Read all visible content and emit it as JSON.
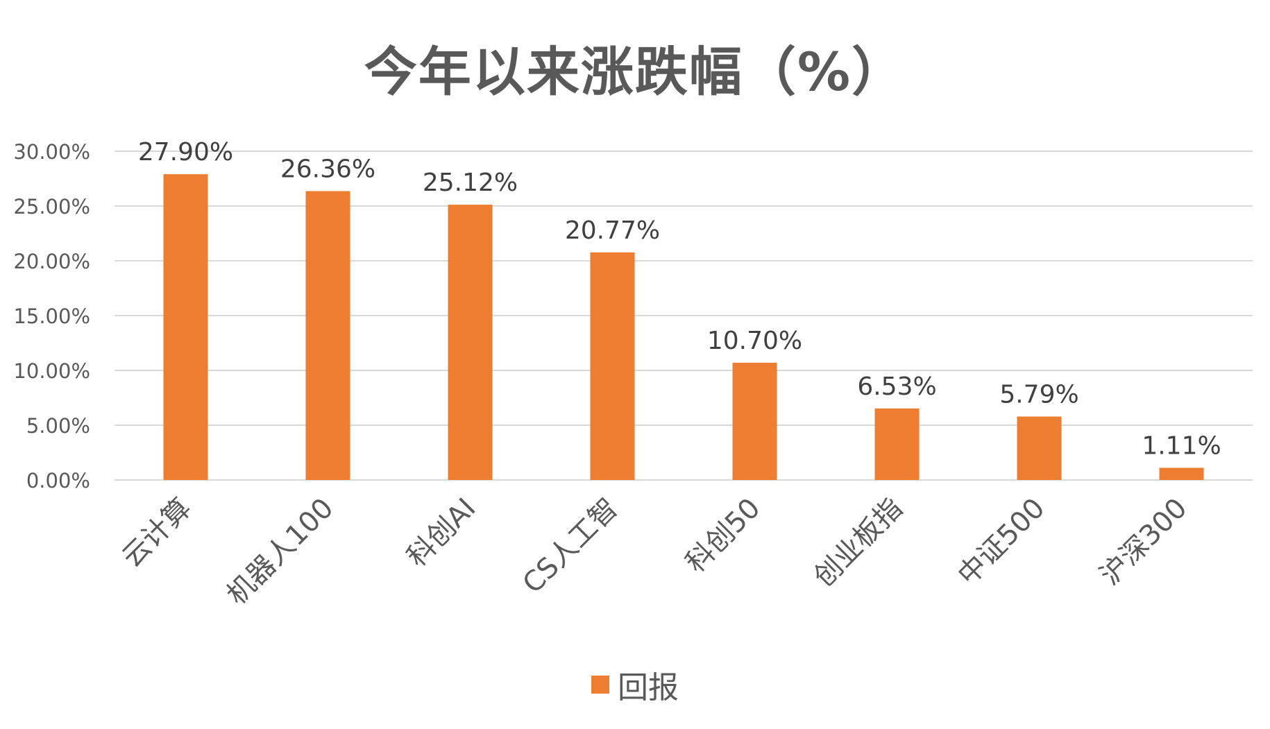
{
  "chart_data": {
    "type": "bar",
    "title": "今年以来涨跌幅（%）",
    "categories": [
      "云计算",
      "机器人100",
      "科创AI",
      "CS人工智",
      "科创50",
      "创业板指",
      "中证500",
      "沪深300"
    ],
    "series": [
      {
        "name": "回报",
        "values": [
          27.9,
          26.36,
          25.12,
          20.77,
          10.7,
          6.53,
          5.79,
          1.11
        ],
        "data_labels": [
          "27.90%",
          "26.36%",
          "25.12%",
          "20.77%",
          "10.70%",
          "6.53%",
          "5.79%",
          "1.11%"
        ],
        "color": "#ED7D31"
      }
    ],
    "ylim": [
      0,
      30
    ],
    "yticks": [
      0,
      5,
      10,
      15,
      20,
      25,
      30
    ],
    "ytick_labels": [
      "0.00%",
      "5.00%",
      "10.00%",
      "15.00%",
      "20.00%",
      "25.00%",
      "30.00%"
    ],
    "grid": true,
    "legend_position": "bottom",
    "gridline_color": "#D9D9D9",
    "text_color": "#595959"
  }
}
